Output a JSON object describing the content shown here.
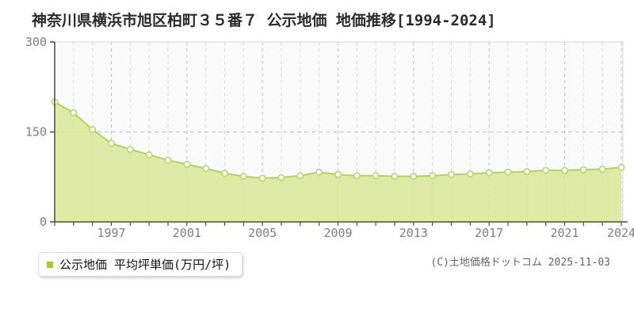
{
  "page": {
    "title": "神奈川県横浜市旭区柏町３５番７ 公示地価 地価推移[1994-2024]",
    "legend": {
      "label": "公示地価 平均坪単価(万円/坪)"
    },
    "copyright": "(C)土地価格ドットコム 2025-11-03"
  },
  "chart_data": {
    "type": "area",
    "title": "神奈川県横浜市旭区柏町３５番７ 公示地価 地価推移[1994-2024]",
    "x": [
      1994,
      1995,
      1996,
      1997,
      1998,
      1999,
      2000,
      2001,
      2002,
      2003,
      2004,
      2005,
      2006,
      2007,
      2008,
      2009,
      2010,
      2011,
      2012,
      2013,
      2014,
      2015,
      2016,
      2017,
      2018,
      2019,
      2020,
      2021,
      2022,
      2023,
      2024
    ],
    "series": [
      {
        "name": "公示地価 平均坪単価(万円/坪)",
        "values": [
          200,
          182,
          154,
          131,
          121,
          112,
          103,
          96,
          89,
          81,
          76,
          73,
          74,
          77,
          83,
          79,
          77,
          77,
          76,
          76,
          77,
          79,
          80,
          82,
          83,
          84,
          86,
          86,
          87,
          88,
          91
        ]
      }
    ],
    "xlabel": "",
    "ylabel": "",
    "unit": "万円/坪",
    "ylim": [
      0,
      300
    ],
    "y_ticks": [
      0,
      150,
      300
    ],
    "x_tick_labels": [
      1997,
      2001,
      2005,
      2009,
      2013,
      2017,
      2021,
      2024
    ],
    "grid": {
      "vertical": "dashed, every year",
      "horizontal": "dashed at 150"
    },
    "legend_position": "bottom-left",
    "markers": "circle, every point",
    "colors": {
      "area_fill": "#d8e697",
      "line": "#b5d356",
      "marker_fill": "#ffffff",
      "marker_stroke": "#bcd96a",
      "legend_swatch": "#a6cc2c",
      "axis": "#4d4d4d",
      "grid_minor": "#d8d8d8",
      "grid_major": "#c2c2c2",
      "plot_bg": "#fafafa",
      "plot_border": "#e3e3e3",
      "tick_label": "#7e7e7e",
      "title_text": "#2b2b2b",
      "copyright_text": "#666666"
    }
  }
}
